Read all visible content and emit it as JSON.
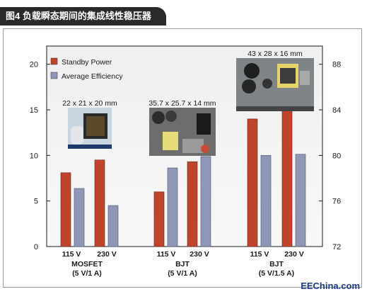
{
  "title": "图4 负载瞬态期间的集成线性稳压器",
  "watermark": "EEChina.com",
  "chart_data": {
    "type": "bar",
    "categories": [
      "115 V",
      "230 V",
      "115 V",
      "230 V",
      "115 V",
      "230 V"
    ],
    "groups": [
      {
        "label_line1": "MOSFET",
        "label_line2": "(5 V/1 A)",
        "photo_caption": "22 x 21 x 20 mm"
      },
      {
        "label_line1": "BJT",
        "label_line2": "(5 V/1 A)",
        "photo_caption": "35.7 x 25.7 x 14 mm"
      },
      {
        "label_line1": "BJT",
        "label_line2": "(5 V/1.5 A)",
        "photo_caption": "43 x 28 x 16 mm"
      }
    ],
    "series": [
      {
        "name": "Standby Power",
        "axis": "left",
        "color": "#c0442b",
        "values": [
          8.1,
          9.5,
          6.0,
          9.3,
          14.0,
          16.1
        ]
      },
      {
        "name": "Average Efficiency",
        "axis": "right",
        "color": "#8e98b6",
        "values": [
          77.1,
          75.6,
          78.9,
          79.9,
          80.0,
          80.1
        ]
      }
    ],
    "left_axis": {
      "min": 0,
      "max": 22,
      "ticks": [
        0,
        5,
        10,
        15,
        20
      ]
    },
    "right_axis": {
      "min": 72,
      "max": 89.6,
      "ticks": [
        72,
        76,
        80,
        84,
        88
      ]
    },
    "legend_position": "top-left",
    "grid": false
  }
}
